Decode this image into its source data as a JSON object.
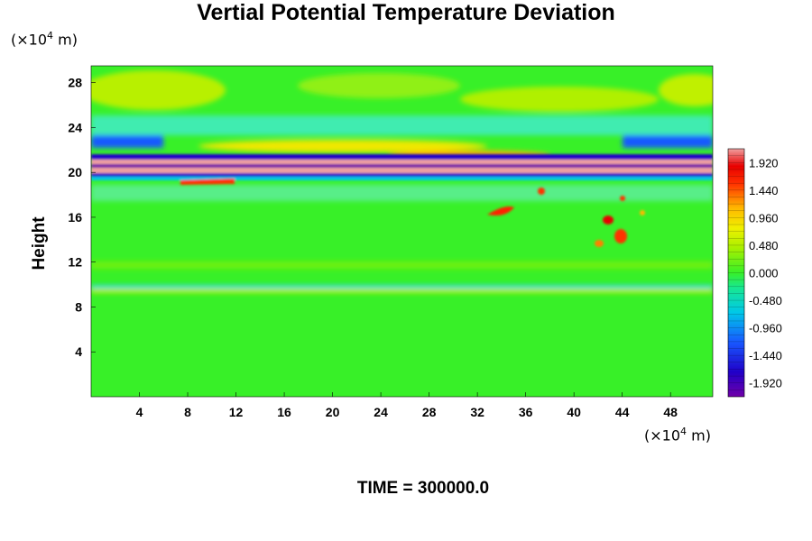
{
  "chart_data": {
    "type": "heatmap",
    "title": "Vertial Potential Temperature Deviation",
    "ylabel": "Height",
    "x_unit": {
      "prefix": "(×10",
      "exp": "4",
      "suffix": " m)"
    },
    "y_unit": {
      "prefix": "(×10",
      "exp": "4",
      "suffix": " m)"
    },
    "xlim": [
      0,
      51.5
    ],
    "ylim": [
      0,
      29.5
    ],
    "x_ticks": [
      4,
      8,
      12,
      16,
      20,
      24,
      28,
      32,
      36,
      40,
      44,
      48
    ],
    "y_ticks": [
      4,
      8,
      12,
      16,
      20,
      24,
      28
    ],
    "colorbar": {
      "min": -2.16,
      "max": 2.16,
      "levels": 36,
      "tick_labels": [
        "1.920",
        "1.440",
        "0.960",
        "0.480",
        "0.000",
        "-0.480",
        "-0.960",
        "-1.440",
        "-1.920"
      ],
      "tick_values": [
        1.92,
        1.44,
        0.96,
        0.48,
        0.0,
        -0.48,
        -0.96,
        -1.44,
        -1.92
      ]
    },
    "annotation": "TIME = 300000.0"
  }
}
